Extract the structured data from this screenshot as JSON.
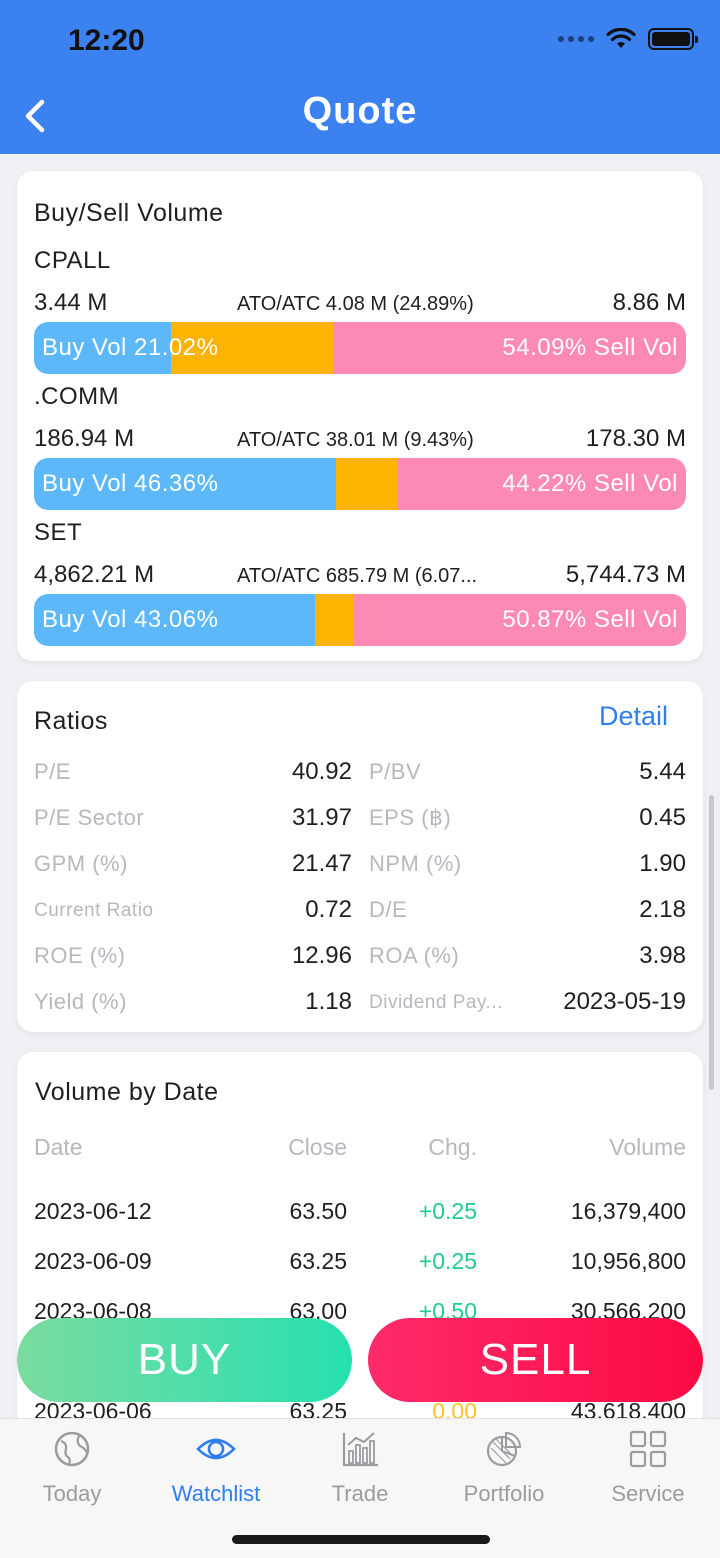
{
  "status": {
    "time": "12:20"
  },
  "header": {
    "title": "Quote"
  },
  "buy_sell": {
    "title": "Buy/Sell Volume",
    "rows": [
      {
        "symbol": "CPALL",
        "buy_value": "3.44 M",
        "ato": "ATO/ATC 4.08 M (24.89%)",
        "sell_value": "8.86 M",
        "buy_label": "Buy Vol 21.02%",
        "sell_label": "54.09% Sell Vol",
        "buy_pct": 21.02,
        "ato_pct": 24.89,
        "sell_pct": 54.09
      },
      {
        "symbol": ".COMM",
        "buy_value": "186.94 M",
        "ato": "ATO/ATC 38.01 M (9.43%)",
        "sell_value": "178.30 M",
        "buy_label": "Buy Vol 46.36%",
        "sell_label": "44.22% Sell Vol",
        "buy_pct": 46.36,
        "ato_pct": 9.43,
        "sell_pct": 44.22
      },
      {
        "symbol": "SET",
        "buy_value": "4,862.21 M",
        "ato": "ATO/ATC 685.79 M (6.07...",
        "sell_value": "5,744.73 M",
        "buy_label": "Buy Vol 43.06%",
        "sell_label": "50.87% Sell Vol",
        "buy_pct": 43.06,
        "ato_pct": 6.07,
        "sell_pct": 50.87
      }
    ]
  },
  "ratios": {
    "title": "Ratios",
    "detail_label": "Detail",
    "rows": [
      {
        "l1": "P/E",
        "v1": "40.92",
        "l2": "P/BV",
        "v2": "5.44"
      },
      {
        "l1": "P/E Sector",
        "v1": "31.97",
        "l2": "EPS (฿)",
        "v2": "0.45"
      },
      {
        "l1": "GPM (%)",
        "v1": "21.47",
        "l2": "NPM (%)",
        "v2": "1.90"
      },
      {
        "l1": "Current Ratio",
        "v1": "0.72",
        "l2": "D/E",
        "v2": "2.18"
      },
      {
        "l1": "ROE (%)",
        "v1": "12.96",
        "l2": "ROA (%)",
        "v2": "3.98"
      },
      {
        "l1": "Yield (%)",
        "v1": "1.18",
        "l2": "Dividend Pay...",
        "v2": "2023-05-19"
      }
    ]
  },
  "volume_by_date": {
    "title": "Volume by Date",
    "headers": {
      "date": "Date",
      "close": "Close",
      "chg": "Chg.",
      "volume": "Volume"
    },
    "rows": [
      {
        "date": "2023-06-12",
        "close": "63.50",
        "chg": "+0.25",
        "volume": "16,379,400"
      },
      {
        "date": "2023-06-09",
        "close": "63.25",
        "chg": "+0.25",
        "volume": "10,956,800"
      },
      {
        "date": "2023-06-08",
        "close": "63.00",
        "chg": "+0.50",
        "volume": "30,566,200"
      },
      {
        "date": "2023-06-06",
        "close": "63.25",
        "chg": "0.00",
        "volume": "43,618,400"
      }
    ]
  },
  "actions": {
    "buy": "BUY",
    "sell": "SELL"
  },
  "tabs": [
    {
      "label": "Today",
      "icon": "globe-icon"
    },
    {
      "label": "Watchlist",
      "icon": "eye-icon"
    },
    {
      "label": "Trade",
      "icon": "bar-chart-icon"
    },
    {
      "label": "Portfolio",
      "icon": "pie-chart-icon"
    },
    {
      "label": "Service",
      "icon": "grid-icon"
    }
  ],
  "colors": {
    "header": "#3b82f0",
    "buy": "#5cb8f9",
    "ato": "#fdb302",
    "sell": "#fd89b5",
    "positive": "#1fcc8e",
    "zero": "#f7c52a",
    "active_tab": "#2f7ef0"
  }
}
